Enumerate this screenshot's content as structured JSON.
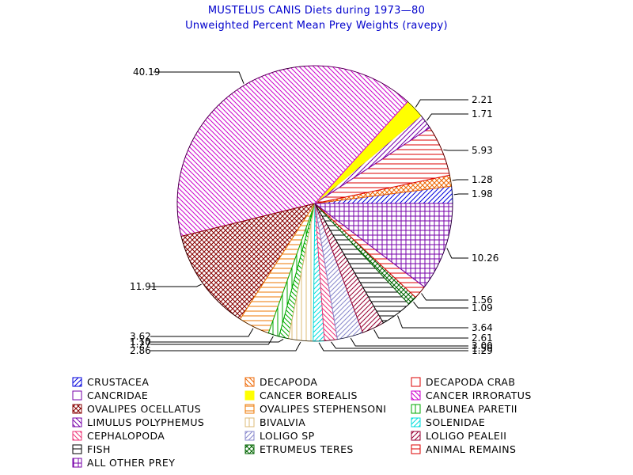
{
  "chart_data": {
    "type": "pie",
    "title": "MUSTELUS CANIS Diets during 1973—80",
    "subtitle": "Unweighted Percent Mean Prey Weights (ravepy)",
    "legend_placement": "bottom",
    "start_angle_deg": 0,
    "direction": "counterclockwise",
    "colors": {
      "title": "#0000cc",
      "blue": "#0000dd",
      "orange": "#ee6600",
      "red": "#dd0000",
      "purple": "#7700aa",
      "yellow": "#ffff00",
      "magenta": "#cc00cc",
      "maroon": "#880000",
      "dark_orange": "#ee7700",
      "green": "#00aa00",
      "light_tan": "#ddbb77",
      "cyan": "#00dddd",
      "pink": "#ee3377",
      "lavender": "#8888cc",
      "dark_red": "#990033",
      "black": "#000000",
      "dark_green": "#006600"
    },
    "legend": [
      {
        "label": "CRUSTACEA",
        "color": "#0000dd",
        "pattern": "diag-fwd"
      },
      {
        "label": "DECAPODA",
        "color": "#ee6600",
        "pattern": "diag-back"
      },
      {
        "label": "DECAPODA CRAB",
        "color": "#dd0000",
        "pattern": "box"
      },
      {
        "label": "CANCRIDAE",
        "color": "#7700aa",
        "pattern": "box"
      },
      {
        "label": "CANCER BOREALIS",
        "color": "#ffff00",
        "pattern": "solid"
      },
      {
        "label": "CANCER IRRORATUS",
        "color": "#cc00cc",
        "pattern": "diag-back"
      },
      {
        "label": "OVALIPES OCELLATUS",
        "color": "#880000",
        "pattern": "crosshatch"
      },
      {
        "label": "OVALIPES STEPHENSONI",
        "color": "#ee7700",
        "pattern": "horiz"
      },
      {
        "label": "ALBUNEA PARETII",
        "color": "#00aa00",
        "pattern": "vert"
      },
      {
        "label": "LIMULUS POLYPHEMUS",
        "color": "#7700aa",
        "pattern": "diag-back"
      },
      {
        "label": "BIVALVIA",
        "color": "#ddbb77",
        "pattern": "vert"
      },
      {
        "label": "SOLENIDAE",
        "color": "#00dddd",
        "pattern": "diag-fwd"
      },
      {
        "label": "CEPHALOPODA",
        "color": "#ee3377",
        "pattern": "diag-back"
      },
      {
        "label": "LOLIGO SP",
        "color": "#8888cc",
        "pattern": "diag-fwd"
      },
      {
        "label": "LOLIGO PEALEII",
        "color": "#990033",
        "pattern": "diag-fwd"
      },
      {
        "label": "FISH",
        "color": "#000000",
        "pattern": "horiz"
      },
      {
        "label": "ETRUMEUS TERES",
        "color": "#006600",
        "pattern": "crosshatch"
      },
      {
        "label": "ANIMAL REMAINS",
        "color": "#dd0000",
        "pattern": "horiz"
      },
      {
        "label": "ALL OTHER PREY",
        "color": "#7700aa",
        "pattern": "grid"
      }
    ],
    "slices": [
      {
        "category": "CRUSTACEA",
        "value": 1.98,
        "label": "1.98",
        "color": "#0000dd",
        "pattern": "diag-fwd"
      },
      {
        "category": "DECAPODA",
        "value": 1.28,
        "label": "1.28",
        "color": "#ee6600",
        "pattern": "crosshatch"
      },
      {
        "category": "DECAPODA CRAB",
        "value": 5.93,
        "label": "5.93",
        "color": "#dd0000",
        "pattern": "horiz"
      },
      {
        "category": "CANCRIDAE",
        "value": 1.71,
        "label": "1.71",
        "color": "#7700aa",
        "pattern": "diag-fwd"
      },
      {
        "category": "CANCER BOREALIS",
        "value": 2.21,
        "label": "2.21",
        "color": "#ffff00",
        "pattern": "solid"
      },
      {
        "category": "CANCER IRRORATUS",
        "value": 40.19,
        "label": "40.19",
        "color": "#cc00cc",
        "pattern": "diag-back"
      },
      {
        "category": "OVALIPES OCELLATUS",
        "value": 11.91,
        "label": "11.91",
        "color": "#880000",
        "pattern": "crosshatch"
      },
      {
        "category": "OVALIPES STEPHENSONI",
        "value": 3.62,
        "label": "3.62",
        "color": "#ee7700",
        "pattern": "horiz"
      },
      {
        "category": "ALBUNEA PARETII",
        "value": 1.27,
        "label": "1.27",
        "color": "#00aa00",
        "pattern": "vert"
      },
      {
        "category": "LIMULUS POLYPHEMUS",
        "value": 1.1,
        "label": "1.10",
        "color": "#00aa00",
        "pattern": "diag-back"
      },
      {
        "category": "BIVALVIA",
        "value": 2.86,
        "label": "2.86",
        "color": "#ddbb77",
        "pattern": "vert"
      },
      {
        "category": "SOLENIDAE",
        "value": 1.29,
        "label": "1.29",
        "color": "#00dddd",
        "pattern": "diag-fwd"
      },
      {
        "category": "CEPHALOPODA",
        "value": 1.5,
        "label": "1.50",
        "color": "#ee3377",
        "pattern": "diag-back"
      },
      {
        "category": "LOLIGO SP",
        "value": 3.0,
        "label": "3.00",
        "color": "#8888cc",
        "pattern": "diag-fwd"
      },
      {
        "category": "LOLIGO PEALEII",
        "value": 2.61,
        "label": "2.61",
        "color": "#990033",
        "pattern": "diag-fwd"
      },
      {
        "category": "FISH",
        "value": 3.64,
        "label": "3.64",
        "color": "#000000",
        "pattern": "horiz"
      },
      {
        "category": "ETRUMEUS TERES",
        "value": 1.09,
        "label": "1.09",
        "color": "#006600",
        "pattern": "crosshatch"
      },
      {
        "category": "ANIMAL REMAINS",
        "value": 1.56,
        "label": "1.56",
        "color": "#dd0000",
        "pattern": "horiz"
      },
      {
        "category": "ALL OTHER PREY",
        "value": 10.26,
        "label": "10.26",
        "color": "#7700aa",
        "pattern": "grid"
      }
    ]
  }
}
